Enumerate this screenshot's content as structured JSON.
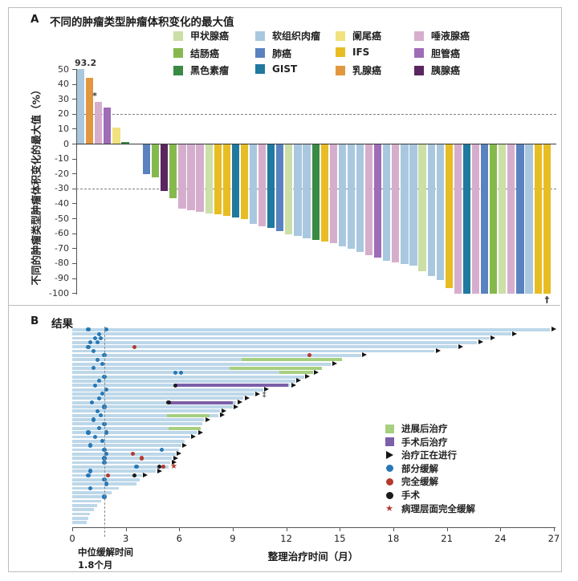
{
  "panel_a": {
    "label": "A",
    "title": "不同的肿瘤类型肿瘤体积变化的最大值",
    "y_axis_label": "不同的肿瘤类型肿瘤体积变化的最大值（%）",
    "legend_rows": [
      [
        {
          "key": "thyroid",
          "label": "甲状腺癌"
        },
        {
          "key": "soft_tissue",
          "label": "软组织肉瘤"
        },
        {
          "key": "appendix",
          "label": "阑尾癌"
        },
        {
          "key": "salivary",
          "label": "唾液腺癌"
        }
      ],
      [
        {
          "key": "colon",
          "label": "结肠癌"
        },
        {
          "key": "lung",
          "label": "肺癌"
        },
        {
          "key": "ifs",
          "label": "IFS"
        },
        {
          "key": "bile_duct",
          "label": "胆管癌"
        }
      ],
      [
        {
          "key": "melanoma",
          "label": "黑色素瘤"
        },
        {
          "key": "gist",
          "label": "GIST"
        },
        {
          "key": "breast",
          "label": "乳腺癌"
        },
        {
          "key": "pancreatic",
          "label": "胰腺癌"
        }
      ]
    ]
  },
  "panel_b": {
    "label": "B",
    "title": "结果",
    "x_axis_label": "整理治疗时间（月）",
    "median_annotation": {
      "line1": "中位缓解时间",
      "line2": "1.8个月"
    },
    "legend": [
      {
        "label": "进展后治疗",
        "marker": "square",
        "color": "#a6cf80"
      },
      {
        "label": "手术后治疗",
        "marker": "square",
        "color": "#7b5fa9"
      },
      {
        "label": "治疗正在进行",
        "marker": "arrow",
        "color": "#141414"
      },
      {
        "label": "部分缓解",
        "marker": "dot",
        "color": "#2878b5"
      },
      {
        "label": "完全缓解",
        "marker": "dot",
        "color": "#b23b2e"
      },
      {
        "label": "手术",
        "marker": "dot",
        "color": "#1b1b1b"
      },
      {
        "label": "病理层面完全缓解",
        "marker": "star",
        "color": "#b23b2e"
      }
    ]
  },
  "chart_data": [
    {
      "type": "bar",
      "subtype": "waterfall",
      "title": "不同的肿瘤类型肿瘤体积变化的最大值",
      "ylabel": "不同的肿瘤类型肿瘤体积变化的最大值（%）",
      "ylim": [
        -100,
        50
      ],
      "yticks": [
        50,
        40,
        30,
        20,
        10,
        0,
        -10,
        -20,
        -30,
        -40,
        -50,
        -60,
        -70,
        -80,
        -90,
        -100
      ],
      "reference_lines": [
        20,
        -30
      ],
      "display_cap": 50,
      "annotations": {
        "max_bar_label": "93.2",
        "asterisk": "*",
        "dagger": "†"
      },
      "colors": {
        "thyroid": "#cbdfa6",
        "colon": "#86b94d",
        "melanoma": "#3a8a44",
        "soft_tissue": "#a9c8df",
        "lung": "#5b82c0",
        "gist": "#20799f",
        "appendix": "#f1e27f",
        "ifs": "#e7bd23",
        "breast": "#e2973f",
        "salivary": "#d6aecd",
        "bile_duct": "#9f6cb8",
        "pancreatic": "#59265f"
      },
      "type_labels": {
        "thyroid": "甲状腺癌",
        "colon": "结肠癌",
        "melanoma": "黑色素瘤",
        "soft_tissue": "软组织肉瘤",
        "lung": "肺癌",
        "gist": "GIST",
        "appendix": "阑尾癌",
        "ifs": "IFS",
        "breast": "乳腺癌",
        "salivary": "唾液腺癌",
        "bile_duct": "胆管癌",
        "pancreatic": "胰腺癌"
      },
      "positive_bars": [
        {
          "type": "soft_tissue",
          "value": 93.2,
          "note": "93.2"
        },
        {
          "type": "breast",
          "value": 44
        },
        {
          "type": "salivary",
          "value": 28,
          "note": "*"
        },
        {
          "type": "bile_duct",
          "value": 24
        },
        {
          "type": "appendix",
          "value": 11
        },
        {
          "type": "melanoma",
          "value": 1
        }
      ],
      "negative_bars": [
        {
          "type": "lung",
          "value": -20
        },
        {
          "type": "colon",
          "value": -22
        },
        {
          "type": "pancreatic",
          "value": -31
        },
        {
          "type": "colon",
          "value": -36
        },
        {
          "type": "salivary",
          "value": -43
        },
        {
          "type": "salivary",
          "value": -44
        },
        {
          "type": "salivary",
          "value": -45
        },
        {
          "type": "thyroid",
          "value": -46
        },
        {
          "type": "ifs",
          "value": -47
        },
        {
          "type": "ifs",
          "value": -48
        },
        {
          "type": "gist",
          "value": -49
        },
        {
          "type": "ifs",
          "value": -50
        },
        {
          "type": "soft_tissue",
          "value": -53
        },
        {
          "type": "salivary",
          "value": -55
        },
        {
          "type": "gist",
          "value": -56
        },
        {
          "type": "lung",
          "value": -58
        },
        {
          "type": "thyroid",
          "value": -60
        },
        {
          "type": "soft_tissue",
          "value": -61
        },
        {
          "type": "soft_tissue",
          "value": -63
        },
        {
          "type": "melanoma",
          "value": -64
        },
        {
          "type": "ifs",
          "value": -65
        },
        {
          "type": "salivary",
          "value": -66
        },
        {
          "type": "soft_tissue",
          "value": -68
        },
        {
          "type": "soft_tissue",
          "value": -70
        },
        {
          "type": "soft_tissue",
          "value": -72
        },
        {
          "type": "salivary",
          "value": -74
        },
        {
          "type": "bile_duct",
          "value": -76
        },
        {
          "type": "soft_tissue",
          "value": -78
        },
        {
          "type": "salivary",
          "value": -79
        },
        {
          "type": "soft_tissue",
          "value": -80
        },
        {
          "type": "soft_tissue",
          "value": -81
        },
        {
          "type": "thyroid",
          "value": -85
        },
        {
          "type": "soft_tissue",
          "value": -88
        },
        {
          "type": "soft_tissue",
          "value": -91
        },
        {
          "type": "ifs",
          "value": -96
        },
        {
          "type": "salivary",
          "value": -100
        },
        {
          "type": "gist",
          "value": -100
        },
        {
          "type": "salivary",
          "value": -100
        },
        {
          "type": "lung",
          "value": -100
        },
        {
          "type": "colon",
          "value": -100
        },
        {
          "type": "thyroid",
          "value": -100
        },
        {
          "type": "salivary",
          "value": -100
        },
        {
          "type": "lung",
          "value": -100
        },
        {
          "type": "soft_tissue",
          "value": -100
        },
        {
          "type": "ifs",
          "value": -100
        },
        {
          "type": "ifs",
          "value": -100,
          "note": "†"
        }
      ]
    },
    {
      "type": "swimmer",
      "title": "结果",
      "xlabel": "整理治疗时间（月）",
      "xlim": [
        0,
        27
      ],
      "xticks": [
        0,
        3,
        6,
        9,
        12,
        15,
        18,
        21,
        24,
        27
      ],
      "median_response_months": 1.8,
      "lane_color": "#bdd7e9",
      "segment_colors": {
        "post_progression": "#a6cf80",
        "post_surgery": "#7b5fa9"
      },
      "marker_colors": {
        "pr": "#2878b5",
        "cr": "#b23b2e",
        "surg": "#1b1b1b",
        "star": "#b23b2e"
      },
      "marker_labels": {
        "pr": "部分缓解",
        "cr": "完全缓解",
        "surg": "手术",
        "star": "病理层面完全缓解",
        "arrow": "治疗正在进行"
      },
      "lanes": [
        {
          "months": 26.8,
          "arrow": 1,
          "dots": [
            [
              "pr",
              0.9
            ],
            [
              "pr",
              1.9
            ]
          ]
        },
        {
          "months": 24.6,
          "arrow": 1,
          "dots": [
            [
              "pr",
              1.5
            ]
          ]
        },
        {
          "months": 23.4,
          "arrow": 1,
          "dots": [
            [
              "pr",
              1.3
            ],
            [
              "pr",
              1.6
            ]
          ]
        },
        {
          "months": 22.7,
          "arrow": 1,
          "dots": [
            [
              "pr",
              1.0
            ],
            [
              "pr",
              1.4
            ]
          ]
        },
        {
          "months": 21.6,
          "arrow": 1,
          "dots": [
            [
              "pr",
              0.9
            ],
            [
              "cr",
              3.5
            ]
          ]
        },
        {
          "months": 20.3,
          "arrow": 1,
          "dots": [
            [
              "pr",
              1.2
            ]
          ]
        },
        {
          "months": 16.2,
          "arrow": 1,
          "dots": [
            [
              "pr",
              1.8
            ],
            [
              "cr",
              13.3
            ]
          ]
        },
        {
          "months": 15.1,
          "green": [
            9.5,
            15.1
          ],
          "dots": [
            [
              "pr",
              1.4
            ]
          ]
        },
        {
          "months": 14.5,
          "arrow": 1,
          "dots": [
            [
              "pr",
              1.7
            ]
          ]
        },
        {
          "months": 14.0,
          "green": [
            8.8,
            14.0
          ],
          "dots": [
            [
              "pr",
              1.2
            ]
          ]
        },
        {
          "months": 13.5,
          "arrow": 1,
          "green": [
            11.6,
            13.5
          ],
          "dots": [
            [
              "pr",
              5.8
            ],
            [
              "pr",
              6.1
            ]
          ]
        },
        {
          "months": 13.0,
          "arrow": 1,
          "dots": [
            [
              "pr",
              1.8
            ]
          ]
        },
        {
          "months": 12.5,
          "arrow": 1,
          "dots": [
            [
              "pr",
              1.5
            ]
          ]
        },
        {
          "months": 12.2,
          "arrow": 1,
          "purple": [
            5.8,
            12.1
          ],
          "dots": [
            [
              "surg",
              5.8
            ],
            [
              "pr",
              1.3
            ]
          ]
        },
        {
          "months": 10.7,
          "arrow": 1,
          "dots": [
            [
              "pr",
              1.9
            ]
          ]
        },
        {
          "months": 10.2,
          "arrow": 1,
          "ddagger": 1,
          "dots": [
            [
              "pr",
              1.7
            ]
          ]
        },
        {
          "months": 9.6,
          "arrow": 1,
          "dots": [
            [
              "pr",
              1.5
            ]
          ]
        },
        {
          "months": 9.2,
          "arrow": 1,
          "purple": [
            5.4,
            9.0
          ],
          "dots": [
            [
              "surg",
              5.4
            ],
            [
              "pr",
              1.1
            ]
          ]
        },
        {
          "months": 9.0,
          "arrow": 1,
          "dots": [
            [
              "pr",
              1.8
            ]
          ]
        },
        {
          "months": 8.3,
          "arrow": 1,
          "dots": [
            [
              "pr",
              1.4
            ]
          ]
        },
        {
          "months": 8.2,
          "arrow": 1,
          "green": [
            5.3,
            7.7
          ],
          "dots": [
            [
              "pr",
              1.6
            ]
          ]
        },
        {
          "months": 7.4,
          "arrow": 1,
          "dots": [
            [
              "pr",
              1.2
            ]
          ]
        },
        {
          "months": 7.3,
          "dots": [
            [
              "pr",
              1.8
            ]
          ]
        },
        {
          "months": 7.2,
          "green": [
            5.4,
            7.2
          ],
          "dots": [
            [
              "pr",
              1.5
            ]
          ]
        },
        {
          "months": 7.0,
          "arrow": 1,
          "dots": [
            [
              "pr",
              0.9
            ],
            [
              "pr",
              1.9
            ]
          ]
        },
        {
          "months": 6.6,
          "arrow": 1,
          "dots": [
            [
              "pr",
              1.3
            ]
          ]
        },
        {
          "months": 6.3,
          "dots": [
            [
              "pr",
              1.7
            ]
          ]
        },
        {
          "months": 6.1,
          "arrow": 1,
          "dots": [
            [
              "pr",
              1.0
            ]
          ]
        },
        {
          "months": 6.0,
          "dots": [
            [
              "pr",
              1.8
            ],
            [
              "pr",
              5.0
            ]
          ]
        },
        {
          "months": 5.8,
          "arrow": 1,
          "dots": [
            [
              "pr",
              1.9
            ],
            [
              "cr",
              3.4
            ]
          ]
        },
        {
          "months": 5.6,
          "arrow": 1,
          "dots": [
            [
              "pr",
              1.8
            ],
            [
              "cr",
              3.9
            ]
          ]
        },
        {
          "months": 5.5,
          "arrow": 1,
          "dots": [
            [
              "pr",
              1.8
            ]
          ]
        },
        {
          "months": 5.4,
          "star": 5.4,
          "dots": [
            [
              "pr",
              3.6
            ],
            [
              "surg",
              4.9
            ],
            [
              "cr",
              5.1
            ]
          ]
        },
        {
          "months": 4.7,
          "arrow": 1,
          "dots": [
            [
              "pr",
              1.0
            ]
          ]
        },
        {
          "months": 3.9,
          "arrow": 1,
          "dots": [
            [
              "pr",
              0.9
            ],
            [
              "cr",
              2.0
            ],
            [
              "surg",
              3.5
            ]
          ]
        },
        {
          "months": 3.8,
          "dots": [
            [
              "pr",
              1.8
            ]
          ]
        },
        {
          "months": 3.6,
          "dots": [
            [
              "pr",
              1.9
            ]
          ]
        },
        {
          "months": 2.6,
          "dots": [
            [
              "pr",
              1.0
            ]
          ]
        },
        {
          "months": 2.2,
          "dots": []
        },
        {
          "months": 1.9,
          "dots": [
            [
              "pr",
              1.8
            ]
          ]
        },
        {
          "months": 1.6,
          "dots": []
        },
        {
          "months": 1.4,
          "dots": []
        },
        {
          "months": 1.2,
          "dots": []
        },
        {
          "months": 1.0,
          "dots": []
        },
        {
          "months": 0.9,
          "dots": []
        },
        {
          "months": 0.8,
          "dots": []
        }
      ]
    }
  ]
}
